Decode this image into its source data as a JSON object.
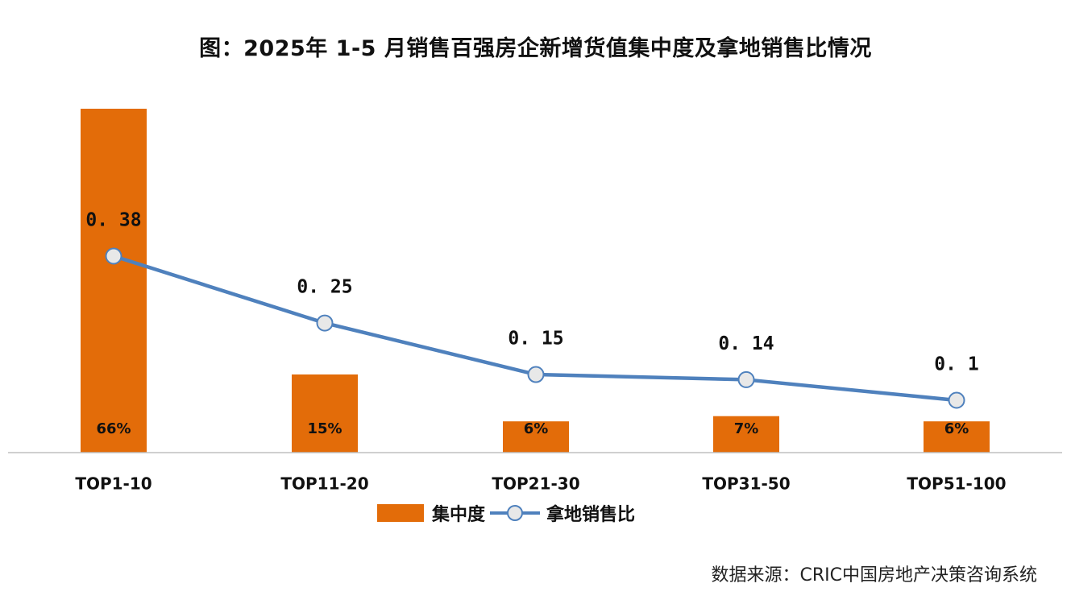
{
  "title": "图：2025年 1-5 月销售百强房企新增货值集中度及拿地销售比情况",
  "source": "数据来源：CRIC中国房地产决策咨询系统",
  "colors": {
    "bar": "#E36C09",
    "line": "#4F81BD",
    "marker_fill": "#E8E8E8",
    "axis": "#BFBFBF"
  },
  "chart_data": {
    "type": "bar",
    "categories": [
      "TOP1-10",
      "TOP11-20",
      "TOP21-30",
      "TOP31-50",
      "TOP51-100"
    ],
    "series": [
      {
        "name": "集中度",
        "type": "bar",
        "values": [
          66,
          15,
          6,
          7,
          6
        ],
        "labels": [
          "66%",
          "15%",
          "6%",
          "7%",
          "6%"
        ]
      },
      {
        "name": "拿地销售比",
        "type": "line",
        "values": [
          0.38,
          0.25,
          0.15,
          0.14,
          0.1
        ],
        "labels": [
          "0.38",
          "0.25",
          "0.15",
          "0.14",
          "0.1"
        ]
      }
    ],
    "legend_position": "bottom",
    "grid": false
  }
}
